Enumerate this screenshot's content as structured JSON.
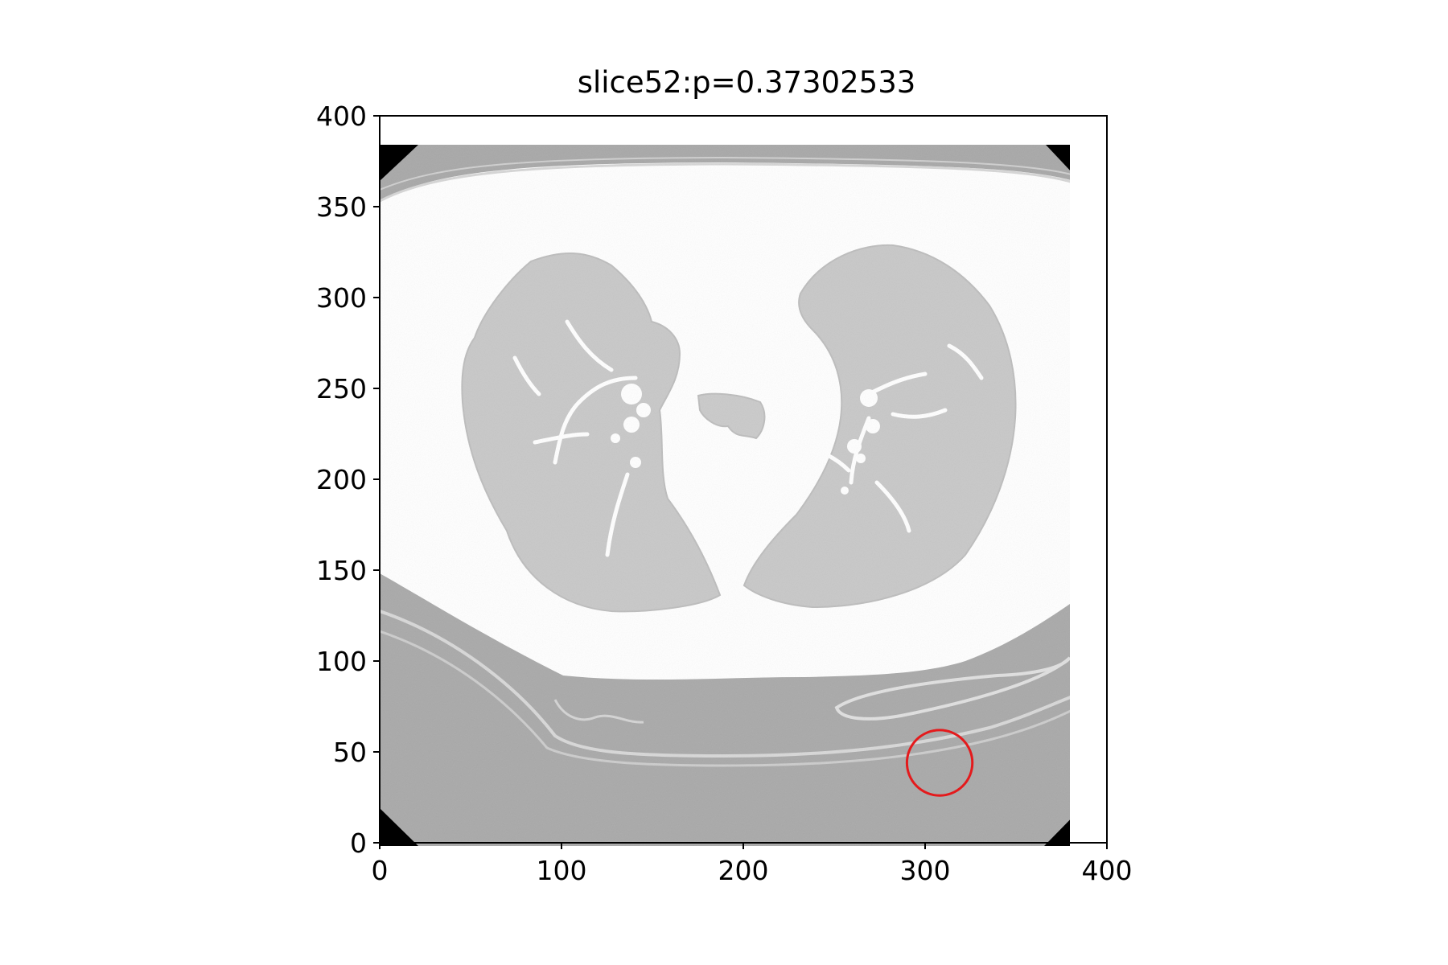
{
  "title": "slice52:p=0.37302533",
  "x_axis": {
    "range": [
      0,
      400
    ],
    "ticks": [
      {
        "value": 0,
        "label": "0"
      },
      {
        "value": 100,
        "label": "100"
      },
      {
        "value": 200,
        "label": "200"
      },
      {
        "value": 300,
        "label": "300"
      },
      {
        "value": 400,
        "label": "400"
      }
    ]
  },
  "y_axis": {
    "range": [
      0,
      400
    ],
    "ticks": [
      {
        "value": 0,
        "label": "0"
      },
      {
        "value": 50,
        "label": "50"
      },
      {
        "value": 100,
        "label": "100"
      },
      {
        "value": 150,
        "label": "150"
      },
      {
        "value": 200,
        "label": "200"
      },
      {
        "value": 250,
        "label": "250"
      },
      {
        "value": 300,
        "label": "300"
      },
      {
        "value": 350,
        "label": "350"
      },
      {
        "value": 400,
        "label": "400"
      }
    ]
  },
  "image": {
    "description_kind": "axial chest CT slice (lung window)",
    "extent": [
      0,
      384,
      0,
      384
    ]
  },
  "marker": {
    "shape": "circle",
    "center": [
      308,
      44
    ],
    "radius": 18,
    "color": "#e41a1c"
  },
  "colors": {
    "background": "#ffffff",
    "soft_tissue": "#a9a9a9",
    "lung": "#c8c8c8",
    "fat_bright": "#ffffff",
    "corner_black": "#000000"
  }
}
